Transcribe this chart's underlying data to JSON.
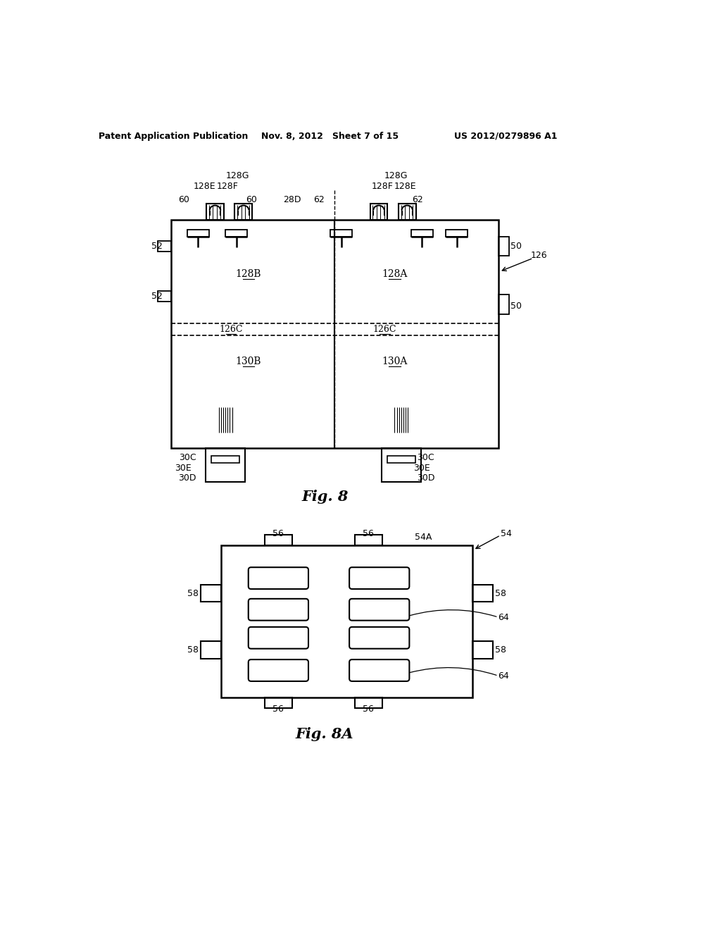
{
  "bg_color": "#ffffff",
  "header_left": "Patent Application Publication",
  "header_mid": "Nov. 8, 2012   Sheet 7 of 15",
  "header_right": "US 2012/0279896 A1",
  "fig8_caption": "Fig. 8",
  "fig8a_caption": "Fig. 8A"
}
